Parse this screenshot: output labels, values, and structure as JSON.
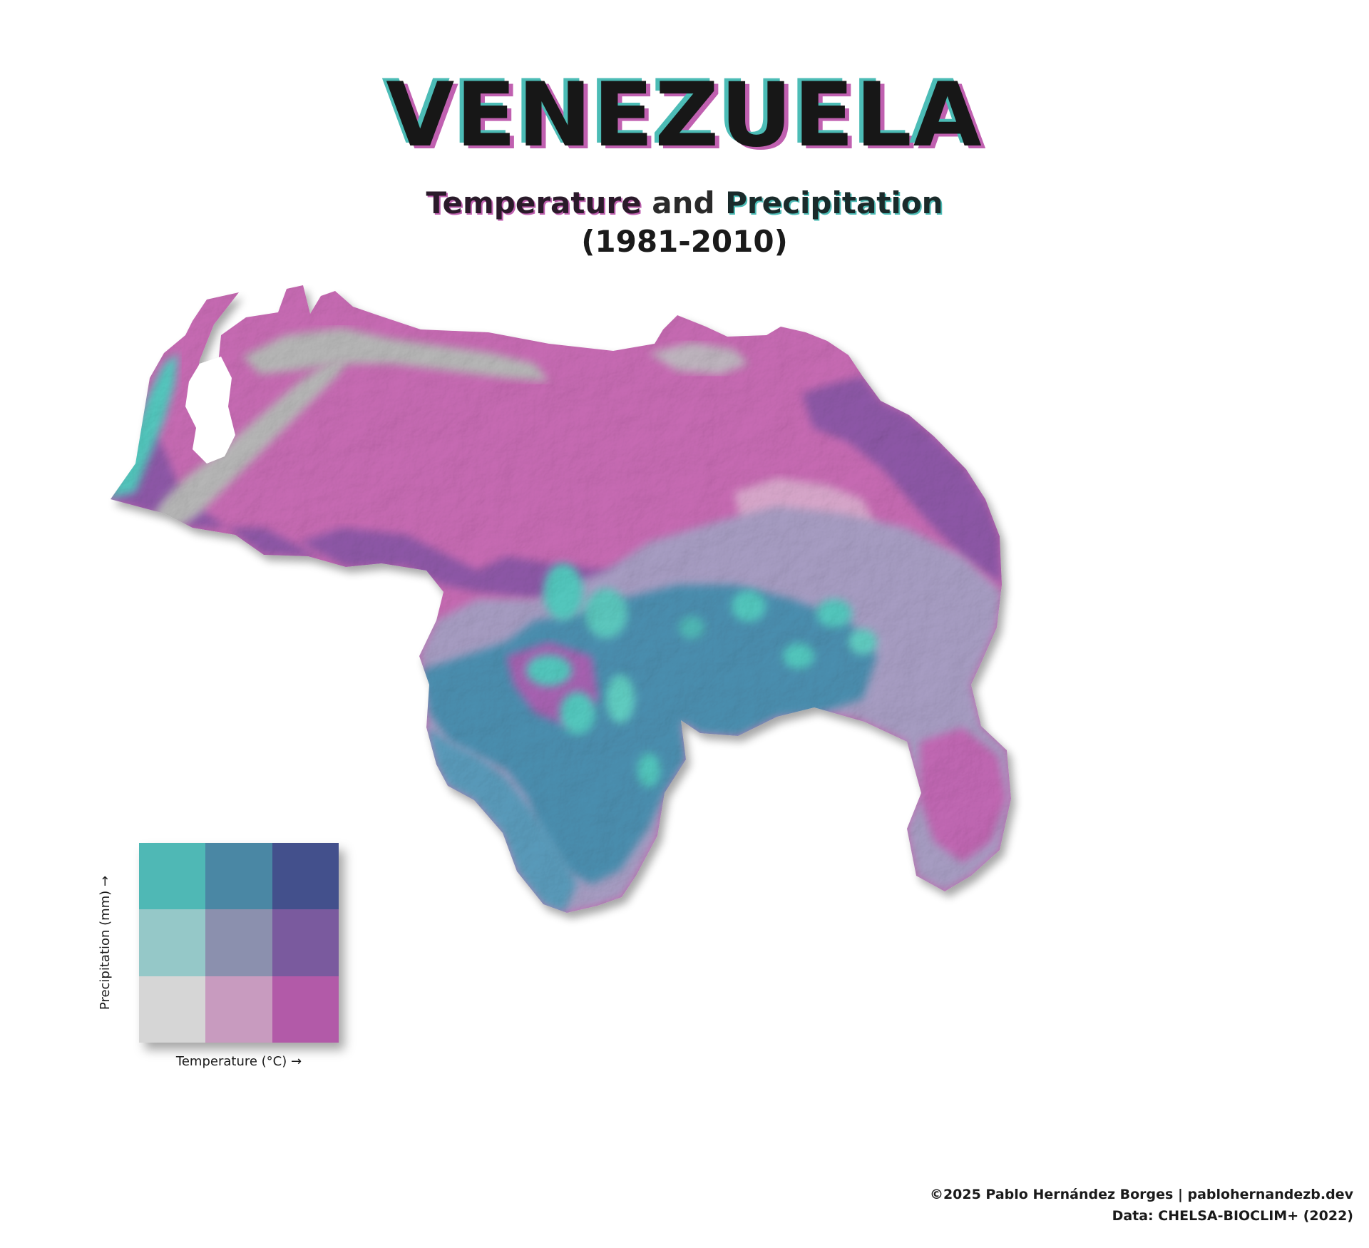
{
  "title": "VENEZUELA",
  "subtitle": {
    "temp_word": "Temperature",
    "and_word": "and",
    "precip_word": "Precipitation"
  },
  "period": "(1981-2010)",
  "legend": {
    "x_label": "Temperature (°C) →",
    "y_label": "Precipitation (mm) →",
    "colors": [
      [
        "#4fb8b5",
        "#4a87a4",
        "#43508c"
      ],
      [
        "#95c8c8",
        "#8b90ae",
        "#7a5a9e"
      ],
      [
        "#d6d6d6",
        "#c89bbf",
        "#b25aa8"
      ]
    ]
  },
  "map_colors": {
    "hot_dry": "#c86bb4",
    "hot_mid": "#8e58a8",
    "mid": "#a89ec4",
    "cool_wet": "#4b8fb0",
    "highland": "#b8b8b8",
    "peaks": "#53c9bf",
    "light_pink": "#d9a8cc"
  },
  "credits": {
    "line1": "©2025 Pablo Hernández Borges | pablohernandezb.dev",
    "line2": "Data: CHELSA-BIOCLIM+ (2022)"
  }
}
